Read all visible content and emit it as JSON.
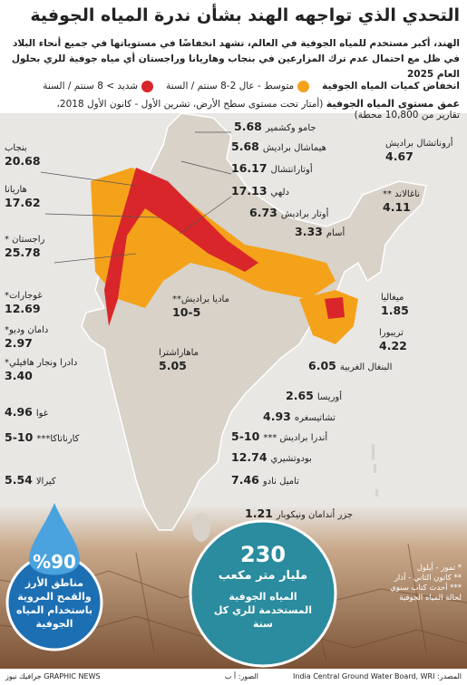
{
  "header": {
    "title": "التحدي الذي تواجهه الهند بشأن ندرة المياه الجوفية",
    "subtitle": [
      "الهند، أكبر مستخدم للمياه الجوفية في العالم، تشهد انخفاضًا في مستوياتها في جميع أنحاء البلاد",
      "في ظل مع احتمال عدم ترك المزارعين في بنجاب وهاريانا وراجستان أي مياه جوفية للري بحلول العام 2025"
    ]
  },
  "legend": {
    "title": "انخفاض كميات المياه الجوفية",
    "items": [
      {
        "label": "متوسط - عال 2-8 سنتم / السنة",
        "color": "#f5a21b"
      },
      {
        "label": "شديد > 8 سنتم / السنة",
        "color": "#d9262a"
      }
    ]
  },
  "depth": {
    "title": "عمق مستوى المياه الجوفية",
    "note": [
      "(أمتار تحت مستوى سطح الأرض، تشرين الأول - كانون الأول 2018،",
      "تقارير من 10,800 محطة)"
    ]
  },
  "states": [
    {
      "name": "جامو وكشمير",
      "value": "5.68"
    },
    {
      "name": "هيماشال براديش",
      "value": "5.68"
    },
    {
      "name": "أوتارانتشال",
      "value": "16.17"
    },
    {
      "name": "دلهي",
      "value": "17.13"
    },
    {
      "name": "أوتار براديش",
      "value": "6.73"
    },
    {
      "name": "أسام",
      "value": "3.33"
    },
    {
      "name": "أروناتشال براديش",
      "value": "4.67"
    },
    {
      "name": "ناغالاند **",
      "value": "4.11"
    },
    {
      "name": "ميغاليا",
      "value": "1.85"
    },
    {
      "name": "تريبورا",
      "value": "4.22"
    },
    {
      "name": "البنغال الغربية",
      "value": "6.05"
    },
    {
      "name": "أوريسا",
      "value": "2.65"
    },
    {
      "name": "تشاتيسغره",
      "value": "4.93"
    },
    {
      "name": "ماديا براديش**",
      "value": "10-5"
    },
    {
      "name": "ماهاراشترا",
      "value": "5.05"
    },
    {
      "name": "أندرا براديش ***",
      "value": "10-5"
    },
    {
      "name": "بودوتشيري",
      "value": "12.74"
    },
    {
      "name": "تاميل نادو",
      "value": "7.46"
    },
    {
      "name": "جزر أندامان ونيكوبار",
      "value": "1.21"
    },
    {
      "name": "كيرالا",
      "value": "5.54"
    },
    {
      "name": "كارناتاكا***",
      "value": "10-5"
    },
    {
      "name": "غوا",
      "value": "4.96"
    },
    {
      "name": "دادرا ونجار هافيلي*",
      "value": "3.40"
    },
    {
      "name": "دامان وديو*",
      "value": "2.97"
    },
    {
      "name": "غوجارات*",
      "value": "12.69"
    },
    {
      "name": "راجستان *",
      "value": "25.78"
    },
    {
      "name": "هاريانا",
      "value": "17.62"
    },
    {
      "name": "بنجاب",
      "value": "20.68"
    }
  ],
  "notes": [
    "* تموز - أيلول",
    "** كانون الثاني - آذار",
    "*** أحدث كتاب سنوي لحالة المياه الجوفية"
  ],
  "stats": [
    {
      "value": "%90",
      "text": "مناطق الأرز والقمح المروية باستخدام المياه الجوفية"
    },
    {
      "value": "230",
      "unit": "مليار متر مكعب",
      "text": "المياه الجوفية المستخدمة للري كل سنة"
    }
  ],
  "footer": {
    "source": "المصدر: India Central Ground Water Board, WRI",
    "photos": "الصور: أ ب",
    "credit": "GRAPHIC NEWS جرافيك نيوز"
  }
}
